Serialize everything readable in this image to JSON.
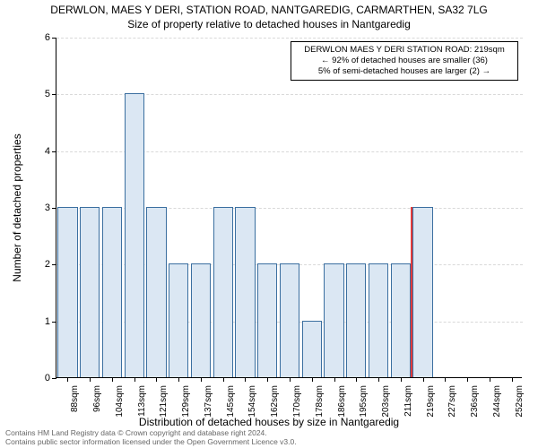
{
  "title_line1": "DERWLON, MAES Y DERI, STATION ROAD, NANTGAREDIG, CARMARTHEN, SA32 7LG",
  "title_line2": "Size of property relative to detached houses in Nantgaredig",
  "ylabel": "Number of detached properties",
  "xlabel": "Distribution of detached houses by size in Nantgaredig",
  "chart": {
    "type": "bar",
    "background_color": "#ffffff",
    "grid_color": "#d9d9d9",
    "axis_color": "#000000",
    "bar_color": "#dbe7f3",
    "bar_border_color": "#3b6fa0",
    "categories": [
      "88sqm",
      "96sqm",
      "104sqm",
      "113sqm",
      "121sqm",
      "129sqm",
      "137sqm",
      "145sqm",
      "154sqm",
      "162sqm",
      "170sqm",
      "178sqm",
      "186sqm",
      "195sqm",
      "203sqm",
      "211sqm",
      "219sqm",
      "227sqm",
      "236sqm",
      "244sqm",
      "252sqm"
    ],
    "values": [
      3,
      3,
      3,
      5,
      3,
      2,
      2,
      3,
      3,
      2,
      2,
      1,
      2,
      2,
      2,
      2,
      3,
      0,
      0,
      0,
      0
    ],
    "ylim": [
      0,
      6
    ],
    "yticks": [
      0,
      1,
      2,
      3,
      4,
      5,
      6
    ],
    "bar_width_ratio": 0.9,
    "marker": {
      "index_between": [
        15,
        16
      ],
      "color": "#e23b3b",
      "height_value": 3
    },
    "xtick_fontsize": 10,
    "ytick_fontsize": 11,
    "label_fontsize": 12
  },
  "annotation": {
    "line1": "DERWLON MAES Y DERI STATION ROAD: 219sqm",
    "line2": "← 92% of detached houses are smaller (36)",
    "line3": "5% of semi-detached houses are larger (2) →",
    "border_color": "#000000",
    "background": "#ffffff"
  },
  "footer": {
    "line1": "Contains HM Land Registry data © Crown copyright and database right 2024.",
    "line2": "Contains public sector information licensed under the Open Government Licence v3.0."
  }
}
